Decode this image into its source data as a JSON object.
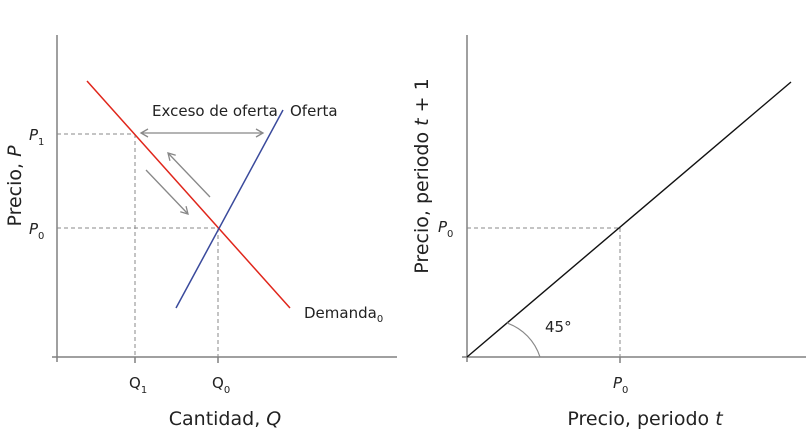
{
  "left_panel": {
    "y_axis_label": "Precio, ",
    "y_axis_var": "P",
    "x_axis_label": "Cantidad, ",
    "x_axis_var": "Q",
    "p1": {
      "main": "P",
      "sub": "1"
    },
    "p0": {
      "main": "P",
      "sub": "0"
    },
    "q1": {
      "main": "Q",
      "sub": "1"
    },
    "q0": {
      "main": "Q",
      "sub": "0"
    },
    "excess_label": "Exceso de oferta",
    "supply_label": "Oferta",
    "demand_label": {
      "main": "Demanda",
      "sub": "0"
    },
    "colors": {
      "supply": "#3a4a9c",
      "demand": "#e0261b",
      "axis": "#808080",
      "guide": "#888888"
    }
  },
  "right_panel": {
    "y_axis_label": "Precio, periodo ",
    "y_axis_var": "t",
    "y_axis_suffix": " + 1",
    "x_axis_label": "Precio, periodo ",
    "x_axis_var": "t",
    "p0_x": {
      "main": "P",
      "sub": "0"
    },
    "p0_y": {
      "main": "P",
      "sub": "0"
    },
    "angle_label": "45°",
    "colors": {
      "line": "#111111"
    }
  }
}
